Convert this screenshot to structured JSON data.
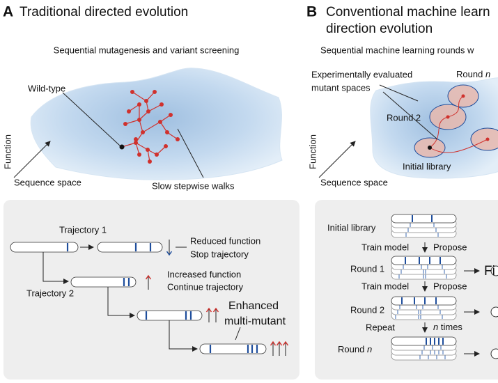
{
  "panel_a": {
    "label": "A",
    "title": "Traditional directed evolution",
    "subtitle": "Sequential mutagenesis and variant screening",
    "landscape": {
      "wild_type": "Wild-type",
      "y_axis": "Function",
      "x_axis": "Sequence space",
      "walks": "Slow stepwise walks"
    },
    "trajectories": {
      "trajectory_1": "Trajectory 1",
      "reduced": "Reduced function",
      "stop": "Stop trajectory",
      "increased": "Increased function",
      "continue": "Continue trajectory",
      "trajectory_2": "Trajectory 2",
      "enhanced": "Enhanced",
      "multi_mutant": "multi-mutant"
    }
  },
  "panel_b": {
    "label": "B",
    "title_line_1": "Conventional machine learn",
    "title_line_2": "direction evolution",
    "subtitle": "Sequential machine learning rounds w",
    "landscape": {
      "evaluated_1": "Experimentally evaluated",
      "evaluated_2": "mutant spaces",
      "round_n": {
        "word": "Round",
        "n": "n"
      },
      "round_2": "Round 2",
      "initial": "Initial library",
      "y_axis": "Function",
      "x_axis": "Sequence space"
    },
    "rounds": {
      "initial": "Initial library",
      "train_1": "Train model",
      "propose_1": "Propose",
      "round_1": "Round 1",
      "train_2": "Train model",
      "propose_2": "Propose",
      "round_2": "Round 2",
      "repeat": "Repeat",
      "times": {
        "n": "n",
        "word": "times"
      },
      "round_n": {
        "word": "Round",
        "n": "n"
      },
      "final": "Fi"
    }
  }
}
